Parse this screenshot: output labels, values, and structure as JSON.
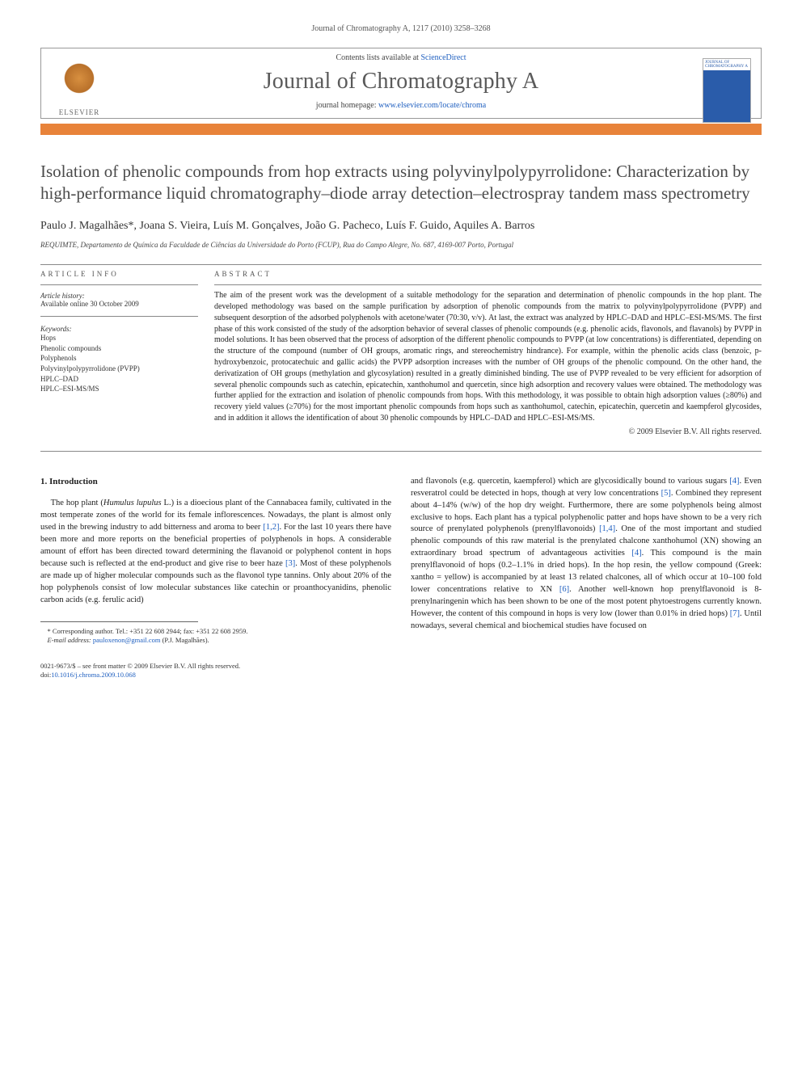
{
  "running_header": "Journal of Chromatography A, 1217 (2010) 3258–3268",
  "banner": {
    "contents_prefix": "Contents lists available at ",
    "contents_link": "ScienceDirect",
    "journal_name": "Journal of Chromatography A",
    "homepage_prefix": "journal homepage: ",
    "homepage_url": "www.elsevier.com/locate/chroma",
    "publisher": "ELSEVIER",
    "cover_text": "JOURNAL OF CHROMATOGRAPHY A"
  },
  "title": "Isolation of phenolic compounds from hop extracts using polyvinylpolypyrrolidone: Characterization by high-performance liquid chromatography–diode array detection–electrospray tandem mass spectrometry",
  "authors": "Paulo J. Magalhães*, Joana S. Vieira, Luís M. Gonçalves, João G. Pacheco, Luís F. Guido, Aquiles A. Barros",
  "affiliation": "REQUIMTE, Departamento de Química da Faculdade de Ciências da Universidade do Porto (FCUP), Rua do Campo Alegre, No. 687, 4169-007 Porto, Portugal",
  "article_info": {
    "label": "ARTICLE INFO",
    "history_label": "Article history:",
    "history_text": "Available online 30 October 2009",
    "keywords_label": "Keywords:",
    "keywords": "Hops\nPhenolic compounds\nPolyphenols\nPolyvinylpolypyrrolidone (PVPP)\nHPLC–DAD\nHPLC–ESI-MS/MS"
  },
  "abstract": {
    "label": "ABSTRACT",
    "text": "The aim of the present work was the development of a suitable methodology for the separation and determination of phenolic compounds in the hop plant. The developed methodology was based on the sample purification by adsorption of phenolic compounds from the matrix to polyvinylpolypyrrolidone (PVPP) and subsequent desorption of the adsorbed polyphenols with acetone/water (70:30, v/v). At last, the extract was analyzed by HPLC–DAD and HPLC–ESI-MS/MS. The first phase of this work consisted of the study of the adsorption behavior of several classes of phenolic compounds (e.g. phenolic acids, flavonols, and flavanols) by PVPP in model solutions. It has been observed that the process of adsorption of the different phenolic compounds to PVPP (at low concentrations) is differentiated, depending on the structure of the compound (number of OH groups, aromatic rings, and stereochemistry hindrance). For example, within the phenolic acids class (benzoic, p-hydroxybenzoic, protocatechuic and gallic acids) the PVPP adsorption increases with the number of OH groups of the phenolic compound. On the other hand, the derivatization of OH groups (methylation and glycosylation) resulted in a greatly diminished binding. The use of PVPP revealed to be very efficient for adsorption of several phenolic compounds such as catechin, epicatechin, xanthohumol and quercetin, since high adsorption and recovery values were obtained. The methodology was further applied for the extraction and isolation of phenolic compounds from hops. With this methodology, it was possible to obtain high adsorption values (≥80%) and recovery yield values (≥70%) for the most important phenolic compounds from hops such as xanthohumol, catechin, epicatechin, quercetin and kaempferol glycosides, and in addition it allows the identification of about 30 phenolic compounds by HPLC–DAD and HPLC–ESI-MS/MS.",
    "copyright": "© 2009 Elsevier B.V. All rights reserved."
  },
  "body": {
    "heading": "1. Introduction",
    "col1": "The hop plant (Humulus lupulus L.) is a dioecious plant of the Cannabacea family, cultivated in the most temperate zones of the world for its female inflorescences. Nowadays, the plant is almost only used in the brewing industry to add bitterness and aroma to beer [1,2]. For the last 10 years there have been more and more reports on the beneficial properties of polyphenols in hops. A considerable amount of effort has been directed toward determining the flavanoid or polyphenol content in hops because such is reflected at the end-product and give rise to beer haze [3]. Most of these polyphenols are made up of higher molecular compounds such as the flavonol type tannins. Only about 20% of the hop polyphenols consist of low molecular substances like catechin or proanthocyanidins, phenolic carbon acids (e.g. ferulic acid)",
    "col2": "and flavonols (e.g. quercetin, kaempferol) which are glycosidically bound to various sugars [4]. Even resveratrol could be detected in hops, though at very low concentrations [5]. Combined they represent about 4–14% (w/w) of the hop dry weight. Furthermore, there are some polyphenols being almost exclusive to hops. Each plant has a typical polyphenolic patter and hops have shown to be a very rich source of prenylated polyphenols (prenylflavonoids) [1,4]. One of the most important and studied phenolic compounds of this raw material is the prenylated chalcone xanthohumol (XN) showing an extraordinary broad spectrum of advantageous activities [4]. This compound is the main prenylflavonoid of hops (0.2–1.1% in dried hops). In the hop resin, the yellow compound (Greek: xantho = yellow) is accompanied by at least 13 related chalcones, all of which occur at 10–100 fold lower concentrations relative to XN [6]. Another well-known hop prenylflavonoid is 8-prenylnaringenin which has been shown to be one of the most potent phytoestrogens currently known. However, the content of this compound in hops is very low (lower than 0.01% in dried hops) [7]. Until nowadays, several chemical and biochemical studies have focused on",
    "refs": [
      "[1,2]",
      "[3]",
      "[4]",
      "[5]",
      "[1,4]",
      "[4]",
      "[6]",
      "[7]"
    ]
  },
  "footnote": {
    "corresponding": "* Corresponding author. Tel.: +351 22 608 2944; fax: +351 22 608 2959.",
    "email_label": "E-mail address: ",
    "email": "pauloxenon@gmail.com",
    "email_suffix": " (P.J. Magalhães)."
  },
  "footer": {
    "line1": "0021-9673/$ – see front matter © 2009 Elsevier B.V. All rights reserved.",
    "doi_label": "doi:",
    "doi": "10.1016/j.chroma.2009.10.068"
  },
  "colors": {
    "orange_bar": "#e8833a",
    "link": "#2060c0",
    "text": "#333333",
    "journal_cover_blue": "#2a5caa",
    "elsevier_orange": "#d89040"
  }
}
